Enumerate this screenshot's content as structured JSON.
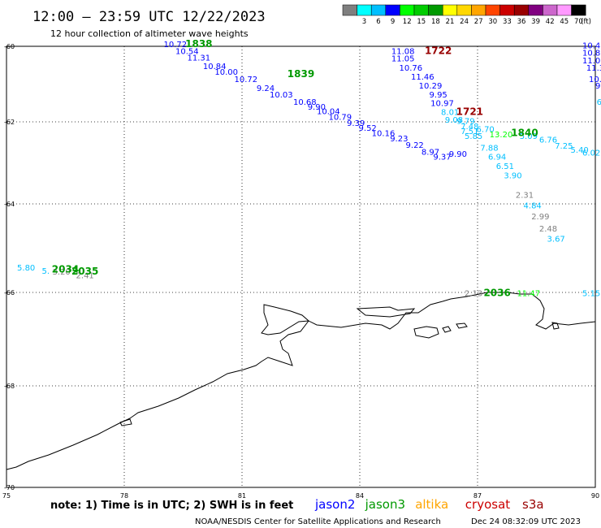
{
  "header": {
    "title": "12:00 – 23:59 UTC 12/22/2023",
    "subtitle": "12 hour collection of altimeter wave heights"
  },
  "legend": {
    "unit_label": "(ft)",
    "swatches": [
      {
        "color": "#7f7f7f",
        "label": ""
      },
      {
        "color": "#00ffff",
        "label": "3"
      },
      {
        "color": "#00bfff",
        "label": "6"
      },
      {
        "color": "#0000ff",
        "label": "9"
      },
      {
        "color": "#00ff00",
        "label": "12"
      },
      {
        "color": "#00cc00",
        "label": "15"
      },
      {
        "color": "#009900",
        "label": "18"
      },
      {
        "color": "#ffff00",
        "label": "21"
      },
      {
        "color": "#ffd700",
        "label": "24"
      },
      {
        "color": "#ffa500",
        "label": "27"
      },
      {
        "color": "#ff4500",
        "label": "30"
      },
      {
        "color": "#cc0000",
        "label": "33"
      },
      {
        "color": "#990000",
        "label": "36"
      },
      {
        "color": "#800080",
        "label": "39"
      },
      {
        "color": "#cc66cc",
        "label": "42"
      },
      {
        "color": "#ff99ff",
        "label": "45"
      },
      {
        "color": "#000000",
        "label": "70"
      }
    ]
  },
  "map": {
    "lon_range": [
      75,
      90
    ],
    "lat_range": [
      -70,
      -60
    ],
    "lon_ticks": [
      {
        "value": 75,
        "label": "75"
      },
      {
        "value": 78,
        "label": "78"
      },
      {
        "value": 81,
        "label": "81"
      },
      {
        "value": 84,
        "label": "84"
      },
      {
        "value": 87,
        "label": "87"
      },
      {
        "value": 90,
        "label": "90"
      }
    ],
    "lat_ticks": [
      {
        "value": -60,
        "label": "-60"
      },
      {
        "value": -62,
        "label": "-62"
      },
      {
        "value": -64,
        "label": "-64"
      },
      {
        "value": -66,
        "label": "-66"
      },
      {
        "value": -68,
        "label": "-68"
      },
      {
        "value": -70,
        "label": "-70"
      }
    ],
    "gridlines": true,
    "observations": [
      {
        "lon": 79.3,
        "lat": -60.02,
        "text": "10.72",
        "color": "#0000ff"
      },
      {
        "lon": 79.6,
        "lat": -60.2,
        "text": "10.54",
        "color": "#0000ff"
      },
      {
        "lon": 79.9,
        "lat": -60.38,
        "text": "11.31",
        "color": "#0000ff"
      },
      {
        "lon": 80.3,
        "lat": -60.6,
        "text": "10.84",
        "color": "#0000ff"
      },
      {
        "lon": 80.6,
        "lat": -60.75,
        "text": "10.00",
        "color": "#0000ff"
      },
      {
        "lon": 81.1,
        "lat": -60.95,
        "text": "10.72",
        "color": "#0000ff"
      },
      {
        "lon": 81.6,
        "lat": -61.18,
        "text": "9.24",
        "color": "#0000ff"
      },
      {
        "lon": 82.0,
        "lat": -61.35,
        "text": "10.03",
        "color": "#0000ff"
      },
      {
        "lon": 82.6,
        "lat": -61.55,
        "text": "10.68",
        "color": "#0000ff"
      },
      {
        "lon": 82.9,
        "lat": -61.68,
        "text": "9.90",
        "color": "#0000ff"
      },
      {
        "lon": 83.2,
        "lat": -61.8,
        "text": "10.04",
        "color": "#0000ff"
      },
      {
        "lon": 83.5,
        "lat": -61.95,
        "text": "10.79",
        "color": "#0000ff"
      },
      {
        "lon": 83.9,
        "lat": -62.1,
        "text": "9.39",
        "color": "#0000ff"
      },
      {
        "lon": 84.2,
        "lat": -62.22,
        "text": "9.52",
        "color": "#0000ff"
      },
      {
        "lon": 84.6,
        "lat": -62.35,
        "text": "10.16",
        "color": "#0000ff"
      },
      {
        "lon": 85.0,
        "lat": -62.48,
        "text": "9.23",
        "color": "#0000ff"
      },
      {
        "lon": 85.4,
        "lat": -62.63,
        "text": "9.22",
        "color": "#0000ff"
      },
      {
        "lon": 85.8,
        "lat": -62.8,
        "text": "8.97",
        "color": "#0000ff"
      },
      {
        "lon": 86.1,
        "lat": -62.92,
        "text": "9.37",
        "color": "#0000ff"
      },
      {
        "lon": 86.5,
        "lat": -62.85,
        "text": "9.90",
        "color": "#0000ff"
      },
      {
        "lon": 85.1,
        "lat": -60.2,
        "text": "11.08",
        "color": "#0000ff"
      },
      {
        "lon": 85.1,
        "lat": -60.4,
        "text": "11.05",
        "color": "#0000ff"
      },
      {
        "lon": 85.3,
        "lat": -60.65,
        "text": "10.76",
        "color": "#0000ff"
      },
      {
        "lon": 85.6,
        "lat": -60.88,
        "text": "11.46",
        "color": "#0000ff"
      },
      {
        "lon": 85.8,
        "lat": -61.12,
        "text": "10.29",
        "color": "#0000ff"
      },
      {
        "lon": 86.0,
        "lat": -61.35,
        "text": "9.95",
        "color": "#0000ff"
      },
      {
        "lon": 86.1,
        "lat": -61.58,
        "text": "10.97",
        "color": "#0000ff"
      },
      {
        "lon": 86.3,
        "lat": -61.82,
        "text": "8.01",
        "color": "#00bfff"
      },
      {
        "lon": 86.4,
        "lat": -62.02,
        "text": "9.08",
        "color": "#00bfff"
      },
      {
        "lon": 86.7,
        "lat": -62.05,
        "text": "9.79",
        "color": "#00bfff"
      },
      {
        "lon": 86.8,
        "lat": -62.18,
        "text": "7.48",
        "color": "#00bfff"
      },
      {
        "lon": 86.8,
        "lat": -62.3,
        "text": "7.51",
        "color": "#00bfff"
      },
      {
        "lon": 86.9,
        "lat": -62.42,
        "text": "5.85",
        "color": "#00bfff"
      },
      {
        "lon": 87.2,
        "lat": -62.25,
        "text": "6.70",
        "color": "#00bfff"
      },
      {
        "lon": 87.3,
        "lat": -62.7,
        "text": "7.88",
        "color": "#00bfff"
      },
      {
        "lon": 87.5,
        "lat": -62.92,
        "text": "6.94",
        "color": "#00bfff"
      },
      {
        "lon": 87.7,
        "lat": -63.15,
        "text": "6.51",
        "color": "#00bfff"
      },
      {
        "lon": 87.9,
        "lat": -63.38,
        "text": "3.90",
        "color": "#00bfff"
      },
      {
        "lon": 88.2,
        "lat": -63.85,
        "text": "2.31",
        "color": "#7f7f7f"
      },
      {
        "lon": 88.4,
        "lat": -64.1,
        "text": "4.84",
        "color": "#00bfff"
      },
      {
        "lon": 88.6,
        "lat": -64.35,
        "text": "2.99",
        "color": "#7f7f7f"
      },
      {
        "lon": 88.8,
        "lat": -64.62,
        "text": "2.48",
        "color": "#7f7f7f"
      },
      {
        "lon": 89.0,
        "lat": -64.85,
        "text": "3.67",
        "color": "#00bfff"
      },
      {
        "lon": 87.6,
        "lat": -62.38,
        "text": "13.20",
        "color": "#00ff00"
      },
      {
        "lon": 88.3,
        "lat": -62.42,
        "text": "5.09",
        "color": "#00bfff"
      },
      {
        "lon": 88.8,
        "lat": -62.5,
        "text": "6.76",
        "color": "#00bfff"
      },
      {
        "lon": 89.2,
        "lat": -62.65,
        "text": "7.25",
        "color": "#00bfff"
      },
      {
        "lon": 89.6,
        "lat": -62.75,
        "text": "5.40",
        "color": "#00bfff"
      },
      {
        "lon": 89.9,
        "lat": -62.82,
        "text": "6.02",
        "color": "#00bfff"
      },
      {
        "lon": 89.9,
        "lat": -60.05,
        "text": "10.4",
        "color": "#0000ff"
      },
      {
        "lon": 89.9,
        "lat": -60.25,
        "text": "10.8",
        "color": "#0000ff"
      },
      {
        "lon": 89.9,
        "lat": -60.45,
        "text": "11.0",
        "color": "#0000ff"
      },
      {
        "lon": 90.0,
        "lat": -60.65,
        "text": "11.3",
        "color": "#0000ff"
      },
      {
        "lon": 90.0,
        "lat": -60.95,
        "text": "10.",
        "color": "#0000ff"
      },
      {
        "lon": 90.1,
        "lat": -61.12,
        "text": "9.",
        "color": "#0000ff"
      },
      {
        "lon": 90.1,
        "lat": -61.55,
        "text": "6",
        "color": "#00bfff"
      },
      {
        "lon": 75.5,
        "lat": -65.5,
        "text": "5.80",
        "color": "#00bfff"
      },
      {
        "lon": 76.0,
        "lat": -65.58,
        "text": "5.",
        "color": "#00bfff"
      },
      {
        "lon": 76.4,
        "lat": -65.6,
        "text": "3.20",
        "color": "#7f7f7f"
      },
      {
        "lon": 77.0,
        "lat": -65.68,
        "text": "2.41",
        "color": "#7f7f7f"
      },
      {
        "lon": 86.9,
        "lat": -66.08,
        "text": "2.13",
        "color": "#7f7f7f"
      },
      {
        "lon": 88.3,
        "lat": -66.08,
        "text": "11.47",
        "color": "#00ff00"
      },
      {
        "lon": 89.9,
        "lat": -66.08,
        "text": "5.15",
        "color": "#00bfff"
      }
    ],
    "times": [
      {
        "lon": 79.9,
        "lat": -60.02,
        "text": "1838",
        "color": "#009900"
      },
      {
        "lon": 82.5,
        "lat": -60.82,
        "text": "1839",
        "color": "#009900"
      },
      {
        "lon": 86.0,
        "lat": -60.2,
        "text": "1722",
        "color": "#990000"
      },
      {
        "lon": 86.8,
        "lat": -61.82,
        "text": "1721",
        "color": "#990000"
      },
      {
        "lon": 88.2,
        "lat": -62.35,
        "text": "1840",
        "color": "#009900"
      },
      {
        "lon": 76.5,
        "lat": -65.55,
        "text": "2034",
        "color": "#009900"
      },
      {
        "lon": 77.0,
        "lat": -65.6,
        "text": "2035",
        "color": "#009900"
      },
      {
        "lon": 87.5,
        "lat": -66.08,
        "text": "2036",
        "color": "#009900"
      }
    ]
  },
  "footer": {
    "note": "note: 1) Time is in UTC; 2) SWH is in feet",
    "missions": [
      {
        "name": "jason2",
        "color": "#0000ff"
      },
      {
        "name": "jason3",
        "color": "#009900"
      },
      {
        "name": "altika",
        "color": "#ffa500"
      },
      {
        "name": "cryosat",
        "color": "#cc0000"
      },
      {
        "name": "s3a",
        "color": "#990000"
      }
    ],
    "credit_left": "NOAA/NESDIS Center for Satellite Applications and Research",
    "credit_right": "Dec 24 08:32:09 UTC 2023"
  }
}
